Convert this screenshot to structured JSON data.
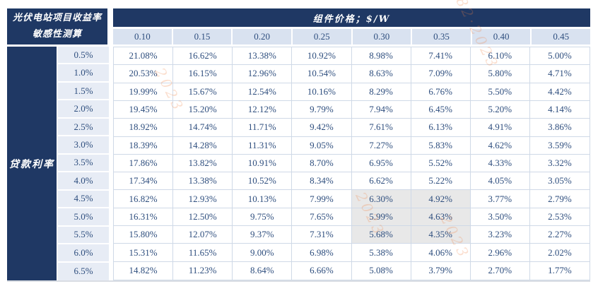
{
  "table": {
    "corner_title_line1": "光伏电站项目收益率",
    "corner_title_line2": "敏感性测算",
    "top_header": "组件价格；$/W",
    "side_header": "贷款利率"
  },
  "chart_data": {
    "type": "table",
    "title": "光伏电站项目收益率敏感性测算",
    "column_group_label": "组件价格；$/W",
    "row_group_label": "贷款利率",
    "columns": [
      "0.10",
      "0.15",
      "0.20",
      "0.25",
      "0.30",
      "0.35",
      "0.40",
      "0.45"
    ],
    "rows": [
      "0.5%",
      "1.0%",
      "1.5%",
      "2.0%",
      "2.5%",
      "3.0%",
      "3.5%",
      "4.0%",
      "4.5%",
      "5.0%",
      "5.5%",
      "6.0%",
      "6.5%"
    ],
    "values": [
      [
        "21.08%",
        "16.62%",
        "13.38%",
        "10.92%",
        "8.98%",
        "7.41%",
        "6.10%",
        "5.00%"
      ],
      [
        "20.53%",
        "16.15%",
        "12.96%",
        "10.54%",
        "8.63%",
        "7.09%",
        "5.80%",
        "4.71%"
      ],
      [
        "19.99%",
        "15.67%",
        "12.54%",
        "10.16%",
        "8.29%",
        "6.76%",
        "5.50%",
        "4.42%"
      ],
      [
        "19.45%",
        "15.20%",
        "12.12%",
        "9.79%",
        "7.94%",
        "6.45%",
        "5.20%",
        "4.14%"
      ],
      [
        "18.92%",
        "14.74%",
        "11.71%",
        "9.42%",
        "7.61%",
        "6.13%",
        "4.91%",
        "3.86%"
      ],
      [
        "18.39%",
        "14.28%",
        "11.31%",
        "9.05%",
        "7.27%",
        "5.83%",
        "4.62%",
        "3.59%"
      ],
      [
        "17.86%",
        "13.82%",
        "10.91%",
        "8.70%",
        "6.95%",
        "5.52%",
        "4.33%",
        "3.32%"
      ],
      [
        "17.34%",
        "13.38%",
        "10.52%",
        "8.34%",
        "6.62%",
        "5.22%",
        "4.05%",
        "3.05%"
      ],
      [
        "16.82%",
        "12.93%",
        "10.13%",
        "7.99%",
        "6.30%",
        "4.92%",
        "3.77%",
        "2.79%"
      ],
      [
        "16.31%",
        "12.50%",
        "9.75%",
        "7.65%",
        "5.99%",
        "4.63%",
        "3.50%",
        "2.53%"
      ],
      [
        "15.80%",
        "12.07%",
        "9.37%",
        "7.31%",
        "5.68%",
        "4.35%",
        "3.23%",
        "2.27%"
      ],
      [
        "15.31%",
        "11.65%",
        "9.00%",
        "6.98%",
        "5.38%",
        "4.06%",
        "2.96%",
        "2.02%"
      ],
      [
        "14.82%",
        "11.23%",
        "8.64%",
        "6.66%",
        "5.08%",
        "3.79%",
        "2.70%",
        "1.77%"
      ]
    ],
    "highlighted_cells": [
      [
        8,
        4
      ],
      [
        8,
        5
      ],
      [
        9,
        4
      ],
      [
        9,
        5
      ],
      [
        10,
        4
      ],
      [
        10,
        5
      ]
    ],
    "layout": {
      "grid": "on",
      "highlight_color": "#e8e8e8"
    }
  },
  "watermark": {
    "fragments": [
      "82·2023",
      "2023",
      "2023",
      "2023"
    ]
  },
  "colors": {
    "navy": "#1f3864",
    "subheader_bg": "#d9e2f0",
    "label_bg": "#e7ecf5",
    "grid_border": "#cfd9e7",
    "highlight_bg": "#e8e8e8",
    "value_text": "#2e4e7e"
  }
}
